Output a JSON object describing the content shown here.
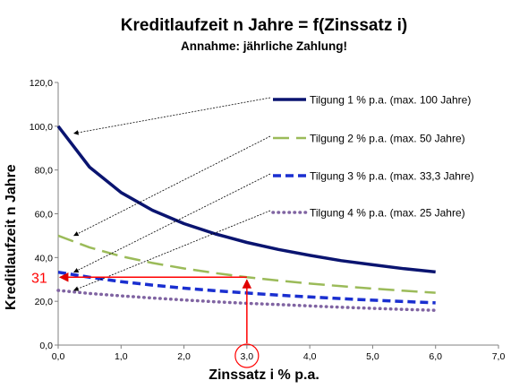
{
  "title": "Kreditlaufzeit n Jahre = f(Zinssatz i)",
  "subtitle": "Annahme: jährliche Zahlung!",
  "chart_data": {
    "type": "line",
    "title": "Kreditlaufzeit n Jahre = f(Zinssatz i)",
    "subtitle": "Annahme: jährliche Zahlung!",
    "xlabel": "Zinssatz  i % p.a.",
    "ylabel": "Kreditlaufzeit  n Jahre",
    "xlim": [
      0,
      7
    ],
    "ylim": [
      0,
      120
    ],
    "xticks": [
      "0,0",
      "1,0",
      "2,0",
      "3,0",
      "4,0",
      "5,0",
      "6,0",
      "7,0"
    ],
    "yticks": [
      "0,0",
      "20,0",
      "40,0",
      "60,0",
      "80,0",
      "100,0",
      "120,0"
    ],
    "grid": false,
    "legend": "right",
    "x": [
      0,
      0.5,
      1,
      1.5,
      2,
      2.5,
      3,
      3.5,
      4,
      4.5,
      5,
      5.5,
      6
    ],
    "series": [
      {
        "name": "Tilgung 1 % p.a. (max. 100 Jahre)",
        "color": "#0a1470",
        "style": "solid",
        "values": [
          100,
          81.3,
          69.7,
          61.6,
          55.5,
          50.8,
          46.9,
          43.7,
          41.0,
          38.6,
          36.7,
          34.9,
          33.4
        ]
      },
      {
        "name": "Tilgung 2 % p.a. (max. 50 Jahre)",
        "color": "#9bbb59",
        "style": "dashed",
        "values": [
          50,
          44.6,
          40.6,
          37.5,
          35.0,
          32.9,
          31.0,
          29.5,
          28.1,
          26.9,
          25.8,
          24.8,
          23.9
        ]
      },
      {
        "name": "Tilgung 3 % p.a. (max. 33,3 Jahre)",
        "color": "#1a2fd0",
        "style": "dashed-thick",
        "values": [
          33.3,
          31.0,
          29.0,
          27.4,
          26.0,
          24.8,
          23.8,
          22.8,
          22.0,
          21.2,
          20.5,
          19.9,
          19.3
        ]
      },
      {
        "name": "Tilgung 4 % p.a. (max. 25 Jahre)",
        "color": "#8064a2",
        "style": "dotted",
        "values": [
          25,
          23.6,
          22.5,
          21.5,
          20.6,
          19.8,
          19.1,
          18.5,
          17.9,
          17.3,
          16.8,
          16.3,
          15.9
        ]
      }
    ],
    "annotations": [
      {
        "text": "31",
        "color": "#ff0000",
        "x": 3.0,
        "y": 31
      },
      {
        "text": "3,0",
        "highlight": "circle",
        "color": "#ff0000",
        "x": 3.0,
        "y": 0
      }
    ]
  }
}
